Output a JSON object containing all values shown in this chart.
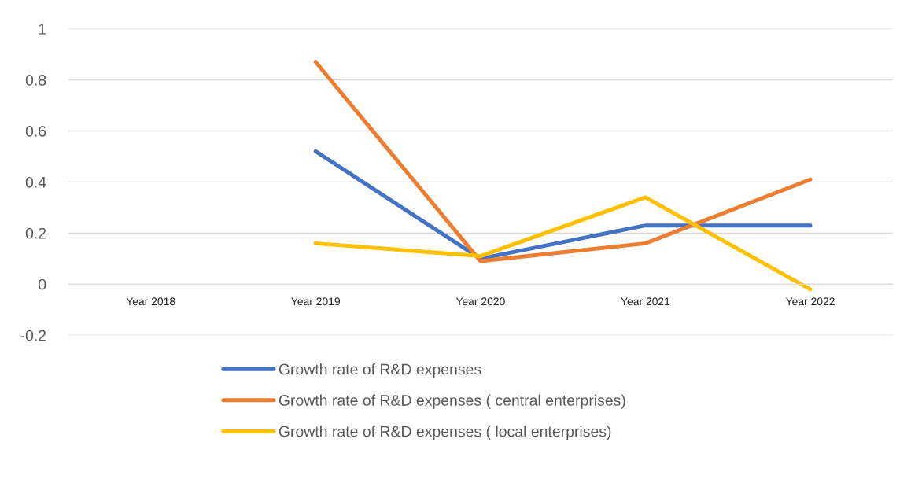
{
  "chart_data": {
    "type": "line",
    "categories": [
      "Year 2018",
      "Year 2019",
      "Year 2020",
      "Year 2021",
      "Year 2022"
    ],
    "series": [
      {
        "name": "Growth rate of R&D expenses",
        "color": "#4472c4",
        "values": [
          null,
          0.52,
          0.1,
          0.23,
          0.23
        ]
      },
      {
        "name": "Growth rate of R&D expenses ( central enterprises)",
        "color": "#ed7d31",
        "values": [
          null,
          0.87,
          0.09,
          0.16,
          0.41
        ]
      },
      {
        "name": "Growth rate of R&D expenses ( local enterprises)",
        "color": "#ffc000",
        "values": [
          null,
          0.16,
          0.11,
          0.34,
          -0.02
        ]
      }
    ],
    "ylim": [
      -0.2,
      1
    ],
    "yticks": [
      {
        "value": -0.2,
        "label": "-0.2"
      },
      0,
      0.2,
      0.4,
      0.6,
      0.8,
      1
    ],
    "grid": "y",
    "legend": "bottom",
    "marker": "none",
    "line_style": "solid"
  }
}
